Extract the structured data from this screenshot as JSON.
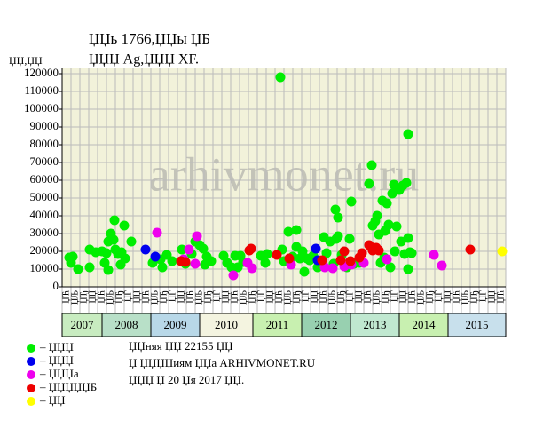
{
  "chart_data": {
    "type": "scatter",
    "title": "ЏЏь 1766,ЏЏы ЏБ",
    "subtitle": "ЏЏЏ Ag,ЏЏЏ XF.",
    "y_label": "ЏЏ,ЏЏ",
    "watermark": "arhivmonet.ru",
    "xlim": [
      0,
      50
    ],
    "ylim": [
      0,
      120000
    ],
    "yticks": [
      0,
      10000,
      20000,
      30000,
      40000,
      50000,
      60000,
      70000,
      80000,
      90000,
      100000,
      110000,
      120000
    ],
    "grid": true,
    "plot_background": "#f2f2da",
    "column_labels": [
      "ЏЋ",
      "ЏЉ",
      "ЏЂ",
      "ЏЏ",
      "ЏЋ",
      "ЏЉ",
      "ЏЂ",
      "ЏЃ",
      "ЏЏ",
      "ЏЋ",
      "ЏЉ",
      "ЏЂ",
      "ЏЃ",
      "ЏЏ",
      "ЏЋ",
      "ЏЉ",
      "ЏЂ",
      "ЏЃ",
      "ЏЏ",
      "ЏЋ",
      "ЏЉ",
      "ЏЂ",
      "ЏЃ",
      "ЏЏ",
      "ЏЋ",
      "ЏЉ",
      "ЏЂ",
      "ЏЃ",
      "ЏЏ",
      "ЏЋ",
      "ЏЉ",
      "ЏЂ",
      "ЏЃ",
      "ЏЏ",
      "ЏЋ",
      "ЏЉ",
      "ЏЂ",
      "ЏЃ",
      "ЏЏ",
      "ЏЋ",
      "ЏЉ",
      "ЏЂ",
      "ЏЃ",
      "ЏЏ",
      "ЏЋ",
      "ЏЉ",
      "ЏЂ",
      "ЏЃ",
      "ЏЏ",
      "ЏЋ"
    ],
    "years": [
      {
        "label": "2007",
        "start": 0,
        "end": 4.5,
        "color": "#c8ecc0"
      },
      {
        "label": "2008",
        "start": 4.5,
        "end": 10,
        "color": "#b8e0c8"
      },
      {
        "label": "2009",
        "start": 10,
        "end": 15.5,
        "color": "#b8d8e8"
      },
      {
        "label": "2010",
        "start": 15.5,
        "end": 21.5,
        "color": "#f4f4e0"
      },
      {
        "label": "2011",
        "start": 21.5,
        "end": 27,
        "color": "#c8f0b0"
      },
      {
        "label": "2012",
        "start": 27,
        "end": 32.5,
        "color": "#98d0b0"
      },
      {
        "label": "2013",
        "start": 32.5,
        "end": 38,
        "color": "#c0e8d0"
      },
      {
        "label": "2014",
        "start": 38,
        "end": 43.5,
        "color": "#c8f0b0"
      },
      {
        "label": "2015",
        "start": 43.5,
        "end": 50,
        "color": "#c8e0ec"
      }
    ],
    "series": [
      {
        "name": "– ЏЏЏ",
        "color": "#00ee00",
        "x": [
          0.8,
          1,
          1.2,
          1.8,
          3.1,
          3.1,
          3.8,
          4.5,
          4.8,
          5,
          5.2,
          5.2,
          5.5,
          5.8,
          5.9,
          6,
          6.3,
          6.6,
          6.7,
          7,
          7.1,
          7.8,
          10.2,
          11.1,
          11.3,
          11.8,
          12.4,
          13.5,
          13.9,
          14.6,
          15,
          15.5,
          15.9,
          16.1,
          16.3,
          16.8,
          18.2,
          18.6,
          19.1,
          19.5,
          19.8,
          20.1,
          20.4,
          22.4,
          22.9,
          23.1,
          24.6,
          24.8,
          25,
          25.5,
          26,
          26.4,
          26.4,
          26.8,
          27.1,
          27.3,
          27.6,
          27.9,
          28.3,
          28.8,
          29.1,
          29.5,
          29.8,
          30.2,
          30.6,
          30.8,
          30.9,
          31.1,
          31.1,
          31.5,
          32.1,
          32.4,
          32.6,
          32.9,
          33.5,
          34.6,
          34.9,
          35,
          35.3,
          35.5,
          35.7,
          35.9,
          36.1,
          36.3,
          36.4,
          36.6,
          36.8,
          37,
          37.2,
          37.4,
          37.5,
          37.7,
          38,
          38.2,
          38.4,
          38.6,
          38.8,
          39,
          39,
          39,
          39.2,
          39.4
        ],
        "values": [
          16500,
          13500,
          17000,
          10000,
          11000,
          21000,
          19500,
          20000,
          13500,
          19000,
          25500,
          9500,
          30000,
          26500,
          37500,
          21000,
          18500,
          12500,
          19500,
          34500,
          16000,
          25500,
          13500,
          15500,
          11000,
          18000,
          14500,
          21000,
          13000,
          18500,
          25500,
          23500,
          21500,
          12500,
          17000,
          14500,
          17500,
          13500,
          11000,
          17500,
          11000,
          17500,
          14000,
          17500,
          13500,
          18500,
          118000,
          21000,
          14500,
          31000,
          17000,
          32000,
          22500,
          16000,
          20000,
          8500,
          16000,
          15000,
          17500,
          11000,
          13500,
          28000,
          19000,
          25500,
          13000,
          43500,
          27000,
          39000,
          28500,
          18000,
          11000,
          27000,
          48000,
          13000,
          13500,
          58000,
          68500,
          34500,
          37000,
          40000,
          29500,
          13500,
          48500,
          16500,
          31500,
          47000,
          35000,
          11000,
          52500,
          57500,
          20000,
          34000,
          54500,
          25500,
          57000,
          18500,
          58500,
          86000,
          27500,
          10000,
          19500,
          19000
        ]
      },
      {
        "name": "– ЏЏЏ",
        "color": "#0000ee",
        "x": [
          9.4,
          10.5,
          28.6,
          28.8
        ],
        "values": [
          21000,
          17000,
          21500,
          15000
        ]
      },
      {
        "name": "– ЏЏЏа",
        "color": "#ee00ee",
        "x": [
          10.7,
          13.7,
          14.3,
          15,
          15.2,
          19.3,
          20.9,
          21.4,
          25.8,
          29.6,
          30.5,
          31.8,
          32.6,
          34,
          36.6,
          41.9,
          42.8
        ],
        "values": [
          30500,
          15500,
          21000,
          13000,
          28500,
          6500,
          13500,
          10500,
          12500,
          11000,
          10500,
          11500,
          12500,
          13500,
          15500,
          18000,
          12000
        ]
      },
      {
        "name": "– ЏЏЏЏЏБ",
        "color": "#ee0000",
        "x": [
          13.4,
          13.9,
          21.1,
          21.3,
          24.2,
          25.6,
          29.3,
          31.4,
          31.8,
          32.5,
          33.5,
          33.8,
          34.6,
          35,
          35.4,
          35.7,
          46
        ],
        "values": [
          14500,
          14000,
          20500,
          21500,
          18000,
          16000,
          15000,
          15000,
          20000,
          14500,
          16500,
          19000,
          23500,
          20500,
          22000,
          20500,
          21000
        ]
      },
      {
        "name": "– ЏЏ",
        "color": "#ffff00",
        "x": [
          49.6
        ],
        "values": [
          20000
        ]
      }
    ],
    "notes": [
      "ЏЏняя ЏЏ 22155 ЏЏ",
      "Џ ЏЏЏЏиям ЏЏа ARHIVMONET.RU",
      "ЏЏЏ Џ 20 Џя 2017 ЏЏ."
    ]
  }
}
